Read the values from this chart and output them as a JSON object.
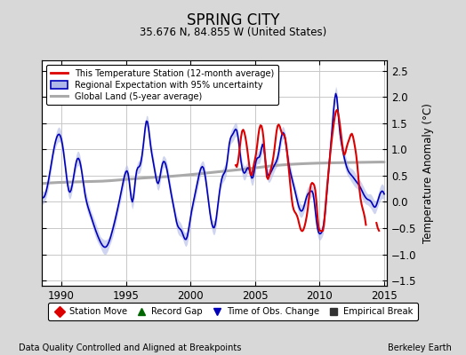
{
  "title": "SPRING CITY",
  "subtitle": "35.676 N, 84.855 W (United States)",
  "ylabel": "Temperature Anomaly (°C)",
  "xlabel_left": "Data Quality Controlled and Aligned at Breakpoints",
  "xlabel_right": "Berkeley Earth",
  "xlim": [
    1988.5,
    2015.2
  ],
  "ylim": [
    -1.6,
    2.7
  ],
  "yticks": [
    -1.5,
    -1.0,
    -0.5,
    0,
    0.5,
    1.0,
    1.5,
    2.0,
    2.5
  ],
  "xticks": [
    1990,
    1995,
    2000,
    2005,
    2010,
    2015
  ],
  "background_color": "#d8d8d8",
  "plot_background": "#ffffff",
  "grid_color": "#c8c8c8",
  "red_line_color": "#dd0000",
  "blue_line_color": "#0000bb",
  "blue_fill_color": "#b0b8e8",
  "gray_line_color": "#aaaaaa",
  "legend_items": [
    "This Temperature Station (12-month average)",
    "Regional Expectation with 95% uncertainty",
    "Global Land (5-year average)"
  ],
  "bottom_legend": [
    {
      "marker": "D",
      "color": "#dd0000",
      "label": "Station Move"
    },
    {
      "marker": "^",
      "color": "#006600",
      "label": "Record Gap"
    },
    {
      "marker": "v",
      "color": "#0000bb",
      "label": "Time of Obs. Change"
    },
    {
      "marker": "s",
      "color": "#333333",
      "label": "Empirical Break"
    }
  ]
}
